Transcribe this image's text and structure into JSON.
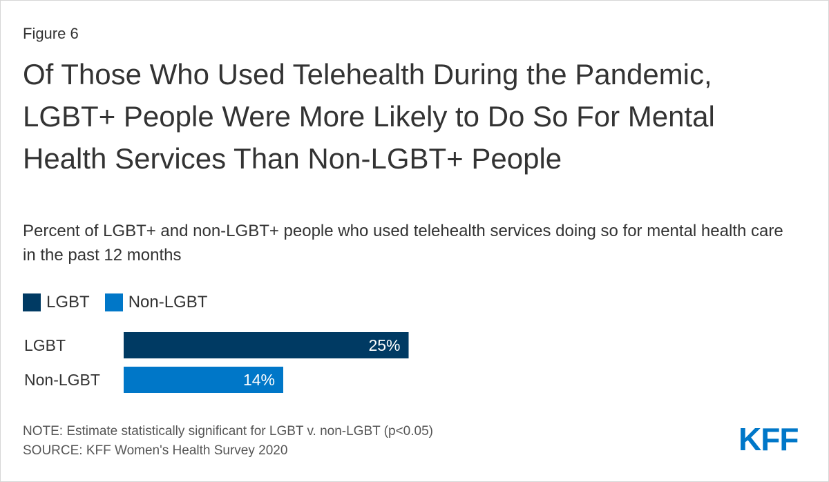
{
  "figure_label": "Figure 6",
  "title": "Of Those Who Used Telehealth During the Pandemic, LGBT+ People Were More Likely to Do So For Mental Health Services Than Non-LGBT+ People",
  "subtitle": "Percent of LGBT+ and non-LGBT+ people who used telehealth services doing so for mental health care in the past 12 months",
  "legend": [
    {
      "label": "LGBT",
      "color": "#003a63"
    },
    {
      "label": "Non-LGBT",
      "color": "#0077c8"
    }
  ],
  "chart_data": {
    "type": "bar",
    "orientation": "horizontal",
    "categories": [
      "LGBT",
      "Non-LGBT"
    ],
    "values": [
      25,
      14
    ],
    "value_labels": [
      "25%",
      "14%"
    ],
    "colors": [
      "#003a63",
      "#0077c8"
    ],
    "xlim": [
      0,
      100
    ],
    "title": "Of Those Who Used Telehealth During the Pandemic, LGBT+ People Were More Likely to Do So For Mental Health Services Than Non-LGBT+ People",
    "xlabel": "",
    "ylabel": "",
    "grid": false,
    "legend_position": "top-left"
  },
  "notes": {
    "note": "NOTE: Estimate statistically significant for LGBT v. non-LGBT (p<0.05)",
    "source": "SOURCE: KFF Women's Health Survey 2020"
  },
  "logo_text": "KFF"
}
